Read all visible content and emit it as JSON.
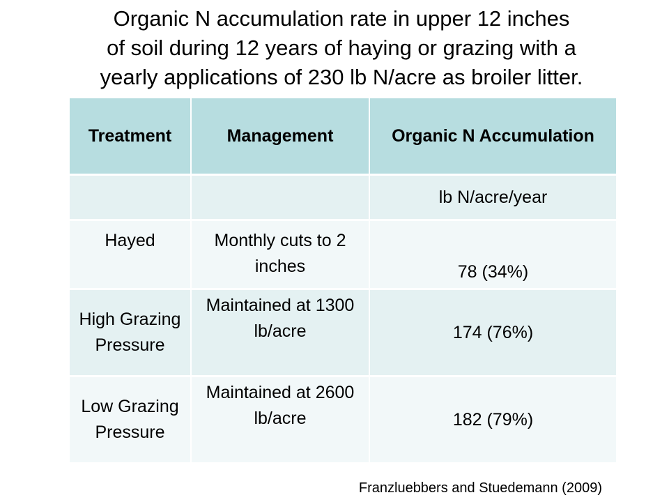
{
  "title": {
    "line1": "Organic N accumulation rate in upper 12 inches",
    "line2": "of soil during 12 years of haying or grazing with a",
    "line3": "yearly applications of 230 lb N/acre as broiler litter."
  },
  "table": {
    "headers": [
      "Treatment",
      "Management",
      "Organic N Accumulation"
    ],
    "units_row": [
      "",
      "",
      "lb N/acre/year"
    ],
    "rows": [
      {
        "treatment": "Hayed",
        "management": "Monthly cuts to 2 inches",
        "organic_n": "78 (34%)"
      },
      {
        "treatment": "High Grazing Pressure",
        "management": "Maintained at 1300 lb/acre",
        "organic_n": "174 (76%)"
      },
      {
        "treatment": "Low Grazing Pressure",
        "management": "Maintained at 2600 lb/acre",
        "organic_n": "182 (79%)"
      }
    ]
  },
  "citation": "Franzluebbers and Stuedemann (2009)",
  "colors": {
    "header_bg": "#b7dde0",
    "row_dark_bg": "#e4f1f2",
    "row_light_bg": "#f2f8f9"
  }
}
